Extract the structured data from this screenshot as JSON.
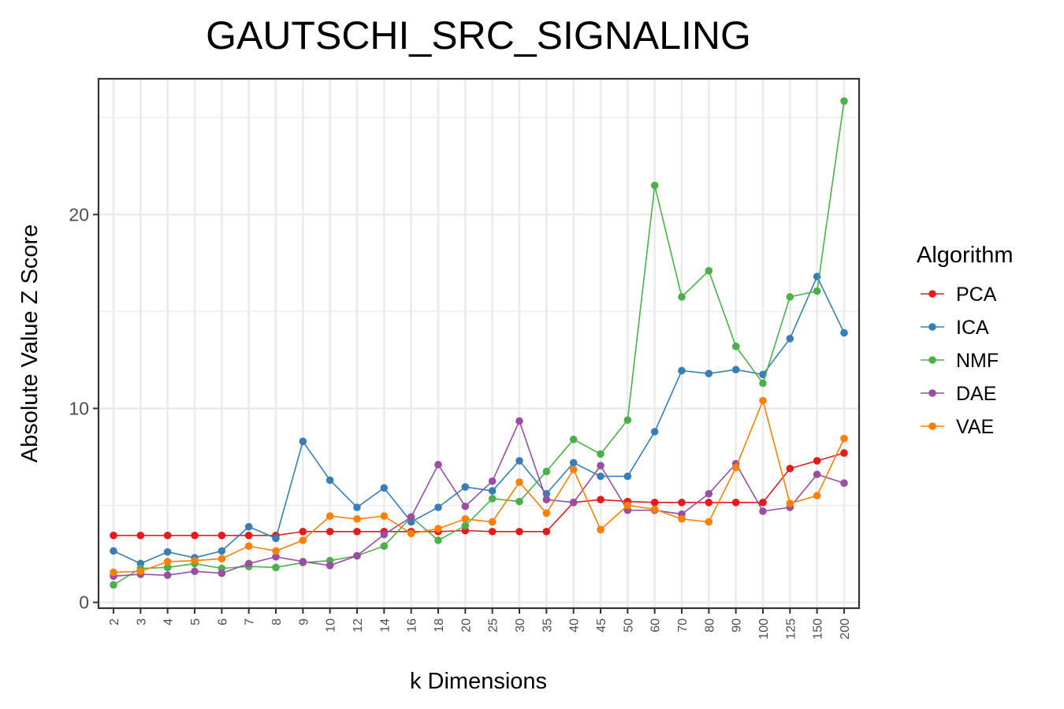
{
  "chart_data": {
    "type": "line",
    "title": "GAUTSCHI_SRC_SIGNALING",
    "xlabel": "k Dimensions",
    "ylabel": "Absolute Value Z Score",
    "categories": [
      "2",
      "3",
      "4",
      "5",
      "6",
      "7",
      "8",
      "9",
      "10",
      "12",
      "14",
      "16",
      "18",
      "20",
      "25",
      "30",
      "35",
      "40",
      "45",
      "50",
      "60",
      "70",
      "80",
      "90",
      "100",
      "125",
      "150",
      "200"
    ],
    "y_ticks": [
      "0",
      "10",
      "20"
    ],
    "ylim": [
      -0.3,
      27
    ],
    "grid": true,
    "legend": {
      "title": "Algorithm",
      "position": "right"
    },
    "series": [
      {
        "name": "PCA",
        "color": "#e41a1c",
        "values": [
          3.45,
          3.45,
          3.45,
          3.45,
          3.45,
          3.45,
          3.45,
          3.65,
          3.65,
          3.65,
          3.65,
          3.65,
          3.65,
          3.7,
          3.65,
          3.65,
          3.65,
          5.15,
          5.3,
          5.2,
          5.15,
          5.15,
          5.15,
          5.15,
          5.15,
          6.9,
          7.3,
          7.7
        ]
      },
      {
        "name": "ICA",
        "color": "#377eb8",
        "values": [
          2.65,
          2.0,
          2.6,
          2.3,
          2.65,
          3.9,
          3.3,
          8.3,
          6.3,
          4.9,
          5.9,
          4.15,
          4.9,
          5.95,
          5.75,
          7.3,
          5.6,
          7.2,
          6.5,
          6.5,
          8.8,
          11.95,
          11.8,
          12.0,
          11.75,
          13.6,
          16.8,
          13.9
        ]
      },
      {
        "name": "NMF",
        "color": "#4daf4a",
        "values": [
          0.9,
          1.75,
          1.8,
          2.0,
          1.75,
          1.85,
          1.8,
          2.05,
          2.15,
          2.4,
          2.9,
          4.4,
          3.2,
          3.95,
          5.35,
          5.2,
          6.75,
          8.4,
          7.65,
          9.4,
          21.5,
          15.75,
          17.1,
          13.2,
          11.3,
          15.75,
          16.05,
          25.85
        ]
      },
      {
        "name": "DAE",
        "color": "#984ea3",
        "values": [
          1.35,
          1.45,
          1.4,
          1.6,
          1.5,
          2.0,
          2.35,
          2.1,
          1.9,
          2.4,
          3.5,
          4.4,
          7.1,
          4.95,
          6.25,
          9.35,
          5.3,
          5.15,
          7.05,
          4.75,
          4.75,
          4.55,
          5.6,
          7.15,
          4.7,
          4.9,
          6.6,
          6.15
        ]
      },
      {
        "name": "VAE",
        "color": "#ff7f00",
        "values": [
          1.55,
          1.6,
          2.1,
          2.15,
          2.25,
          2.9,
          2.65,
          3.2,
          4.45,
          4.3,
          4.45,
          3.55,
          3.8,
          4.3,
          4.15,
          6.2,
          4.6,
          6.85,
          3.75,
          5.0,
          4.8,
          4.3,
          4.15,
          6.95,
          10.4,
          5.1,
          5.5,
          8.45
        ]
      }
    ]
  }
}
